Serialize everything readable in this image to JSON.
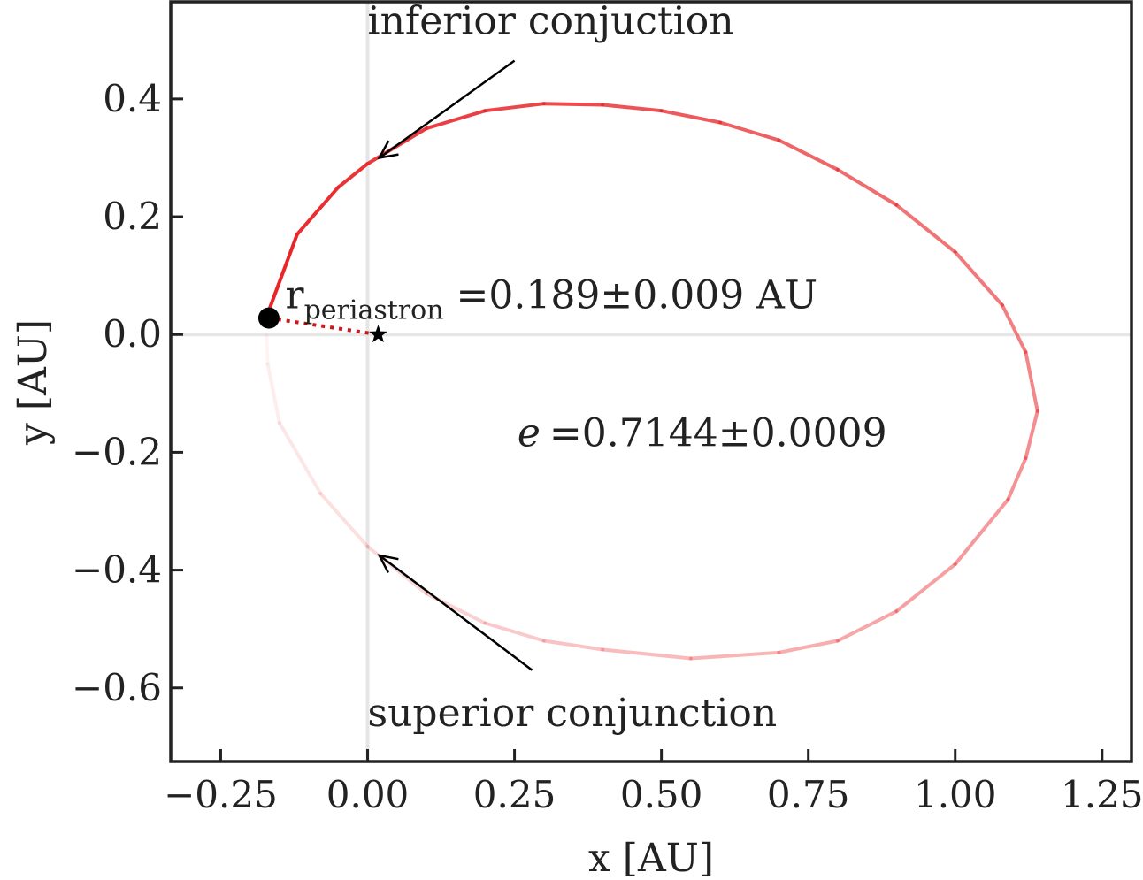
{
  "chart_data": {
    "type": "scatter",
    "title": "",
    "xlabel": "x [AU]",
    "ylabel": "y [AU]",
    "xlim": [
      -0.335,
      1.3
    ],
    "ylim": [
      -0.725,
      0.565
    ],
    "xticks": [
      -0.25,
      0.0,
      0.25,
      0.5,
      0.75,
      1.0,
      1.25
    ],
    "xtick_labels": [
      "−0.25",
      "0.00",
      "0.25",
      "0.50",
      "0.75",
      "1.00",
      "1.25"
    ],
    "yticks": [
      0.4,
      0.2,
      0.0,
      -0.2,
      -0.4,
      -0.6
    ],
    "ytick_labels": [
      "0.4",
      "0.2",
      "0.0",
      "−0.2",
      "−0.4",
      "−0.6"
    ],
    "grid": false,
    "reference_lines": {
      "x": 0.0,
      "y": 0.0,
      "color": "#e6e6e6"
    },
    "orbit": {
      "color": "#e8262a",
      "points": [
        [
          -0.172,
          0.03
        ],
        [
          -0.12,
          0.17
        ],
        [
          -0.05,
          0.25
        ],
        [
          0.0,
          0.29
        ],
        [
          0.1,
          0.35
        ],
        [
          0.2,
          0.38
        ],
        [
          0.3,
          0.392
        ],
        [
          0.4,
          0.39
        ],
        [
          0.5,
          0.38
        ],
        [
          0.6,
          0.36
        ],
        [
          0.7,
          0.33
        ],
        [
          0.8,
          0.28
        ],
        [
          0.9,
          0.22
        ],
        [
          1.0,
          0.14
        ],
        [
          1.08,
          0.05
        ],
        [
          1.12,
          -0.03
        ],
        [
          1.14,
          -0.13
        ],
        [
          1.12,
          -0.21
        ],
        [
          1.09,
          -0.28
        ],
        [
          1.0,
          -0.39
        ],
        [
          0.9,
          -0.47
        ],
        [
          0.8,
          -0.52
        ],
        [
          0.7,
          -0.54
        ],
        [
          0.55,
          -0.55
        ],
        [
          0.4,
          -0.535
        ],
        [
          0.3,
          -0.52
        ],
        [
          0.2,
          -0.49
        ],
        [
          0.1,
          -0.44
        ],
        [
          0.0,
          -0.36
        ],
        [
          -0.08,
          -0.27
        ],
        [
          -0.15,
          -0.15
        ],
        [
          -0.17,
          -0.05
        ],
        [
          -0.172,
          0.0
        ]
      ]
    },
    "planet": {
      "x": -0.168,
      "y": 0.028
    },
    "star": {
      "x": 0.018,
      "y": 0.0
    },
    "periastron_line_color": "#d0151b",
    "annotations": {
      "inferior": {
        "text": "inferior conjuction",
        "point": [
          0.02,
          0.3
        ],
        "text_pos": [
          0.0,
          0.51
        ],
        "tail": [
          0.25,
          0.465
        ]
      },
      "superior": {
        "text": "superior conjunction",
        "point": [
          0.02,
          -0.375
        ],
        "text_pos": [
          0.0,
          -0.665
        ],
        "tail": [
          0.28,
          -0.57
        ]
      },
      "periastron": {
        "symbol": "r",
        "subscript": "periastron",
        "value": "=0.189±0.009 AU",
        "pos": [
          -0.14,
          0.045
        ]
      },
      "eccentricity": {
        "symbol": "e",
        "value": "=0.7144±0.0009",
        "pos": [
          0.255,
          -0.19
        ]
      }
    }
  }
}
